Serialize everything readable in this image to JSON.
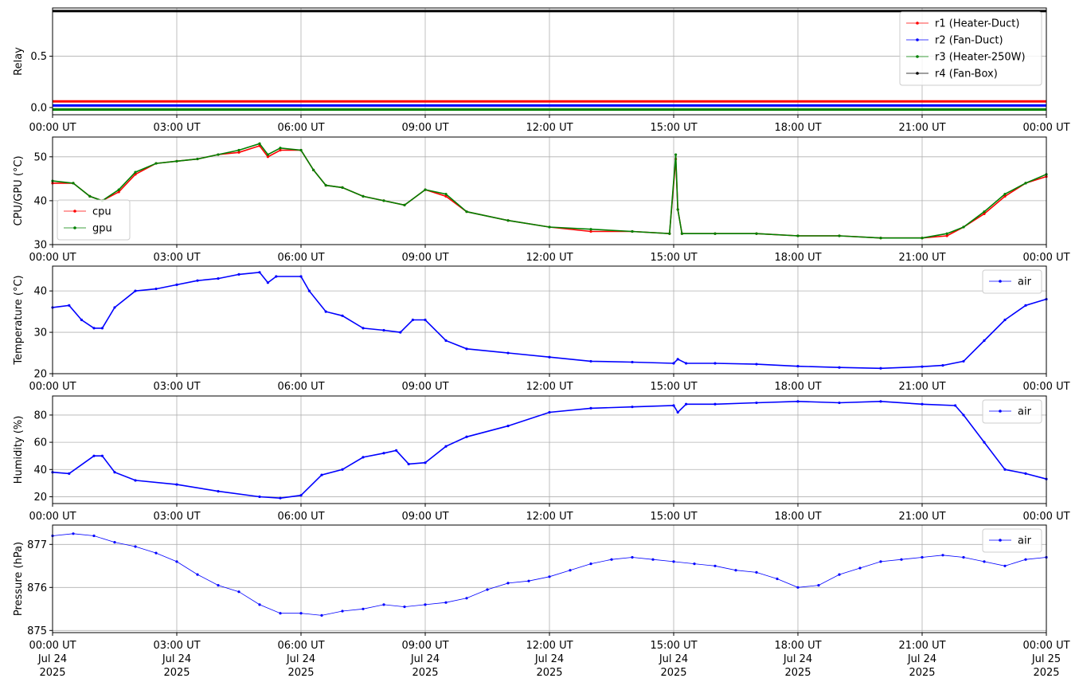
{
  "x_ticks": [
    "00:00 UT",
    "03:00 UT",
    "06:00 UT",
    "09:00 UT",
    "12:00 UT",
    "15:00 UT",
    "18:00 UT",
    "21:00 UT",
    "00:00 UT"
  ],
  "bottom_dates": [
    [
      "Jul 24",
      "2025"
    ],
    [
      "Jul 24",
      "2025"
    ],
    [
      "Jul 24",
      "2025"
    ],
    [
      "Jul 24",
      "2025"
    ],
    [
      "Jul 24",
      "2025"
    ],
    [
      "Jul 24",
      "2025"
    ],
    [
      "Jul 24",
      "2025"
    ],
    [
      "Jul 24",
      "2025"
    ],
    [
      "Jul 25",
      "2025"
    ]
  ],
  "chart_data": [
    {
      "type": "line",
      "ylabel": "Relay",
      "ylim": [
        -0.07,
        0.97
      ],
      "yticks": [
        0.0,
        0.5
      ],
      "ytick_labels": [
        "0.0",
        "0.5"
      ],
      "xlim_hours": [
        0,
        24
      ],
      "grid": true,
      "legend": "top-right",
      "series": [
        {
          "name": "r1 (Heater-Duct)",
          "color": "#ff0000",
          "x": [
            0,
            24
          ],
          "y": [
            0.06,
            0.06
          ]
        },
        {
          "name": "r2 (Fan-Duct)",
          "color": "#0000ff",
          "x": [
            0,
            24
          ],
          "y": [
            0.02,
            0.02
          ]
        },
        {
          "name": "r3 (Heater-250W)",
          "color": "#008000",
          "x": [
            0,
            24
          ],
          "y": [
            -0.02,
            -0.02
          ]
        },
        {
          "name": "r4 (Fan-Box)",
          "color": "#000000",
          "x": [
            0,
            24
          ],
          "y": [
            0.94,
            0.94
          ]
        }
      ]
    },
    {
      "type": "line",
      "ylabel": "CPU/GPU (°C)",
      "ylim": [
        30,
        54.5
      ],
      "yticks": [
        30,
        40,
        50
      ],
      "ytick_labels": [
        "30",
        "40",
        "50"
      ],
      "xlim_hours": [
        0,
        24
      ],
      "grid": true,
      "legend": "lower-left",
      "series": [
        {
          "name": "cpu",
          "color": "#ff0000",
          "x": [
            0,
            0.5,
            0.9,
            1.2,
            1.6,
            2.0,
            2.5,
            3.0,
            3.5,
            4.0,
            4.5,
            5.0,
            5.2,
            5.5,
            6.0,
            6.3,
            6.6,
            7.0,
            7.5,
            8.0,
            8.5,
            9.0,
            9.5,
            10.0,
            11.0,
            12.0,
            13.0,
            14.0,
            14.9,
            15.05,
            15.1,
            15.2,
            16.0,
            17.0,
            18.0,
            19.0,
            20.0,
            21.0,
            21.6,
            22.0,
            22.5,
            23.0,
            23.5,
            24.0
          ],
          "y": [
            44,
            44,
            41,
            40,
            42,
            46,
            48.5,
            49,
            49.5,
            50.5,
            51,
            52.5,
            50,
            51.5,
            51.5,
            47,
            43.5,
            43,
            41,
            40,
            39,
            42.5,
            41,
            37.5,
            35.5,
            34,
            33,
            33,
            32.5,
            49.5,
            38,
            32.5,
            32.5,
            32.5,
            32,
            32,
            31.5,
            31.5,
            32,
            34,
            37,
            41,
            44,
            45.5
          ]
        },
        {
          "name": "gpu",
          "color": "#008000",
          "x": [
            0,
            0.5,
            0.9,
            1.2,
            1.6,
            2.0,
            2.5,
            3.0,
            3.5,
            4.0,
            4.5,
            5.0,
            5.2,
            5.5,
            6.0,
            6.3,
            6.6,
            7.0,
            7.5,
            8.0,
            8.5,
            9.0,
            9.5,
            10.0,
            11.0,
            12.0,
            13.0,
            14.0,
            14.9,
            15.05,
            15.1,
            15.2,
            16.0,
            17.0,
            18.0,
            19.0,
            20.0,
            21.0,
            21.6,
            22.0,
            22.5,
            23.0,
            23.5,
            24.0
          ],
          "y": [
            44.5,
            44,
            41,
            40,
            42.5,
            46.5,
            48.5,
            49,
            49.5,
            50.5,
            51.5,
            53,
            50.5,
            52,
            51.5,
            47,
            43.5,
            43,
            41,
            40,
            39,
            42.5,
            41.5,
            37.5,
            35.5,
            34,
            33.5,
            33,
            32.5,
            50.5,
            38,
            32.5,
            32.5,
            32.5,
            32,
            32,
            31.5,
            31.5,
            32.5,
            34,
            37.5,
            41.5,
            44,
            46
          ]
        }
      ]
    },
    {
      "type": "line",
      "ylabel": "Temperature (°C)",
      "ylim": [
        20,
        46
      ],
      "yticks": [
        20,
        30,
        40
      ],
      "ytick_labels": [
        "20",
        "30",
        "40"
      ],
      "xlim_hours": [
        0,
        24
      ],
      "grid": true,
      "legend": "top-right",
      "series": [
        {
          "name": "air",
          "color": "#0000ff",
          "x": [
            0,
            0.4,
            0.7,
            1.0,
            1.2,
            1.5,
            2.0,
            2.5,
            3.0,
            3.5,
            4.0,
            4.5,
            5.0,
            5.2,
            5.4,
            6.0,
            6.2,
            6.6,
            7.0,
            7.5,
            8.0,
            8.4,
            8.7,
            9.0,
            9.5,
            10.0,
            11.0,
            12.0,
            13.0,
            14.0,
            15.0,
            15.1,
            15.3,
            16.0,
            17.0,
            18.0,
            19.0,
            20.0,
            21.0,
            21.5,
            22.0,
            22.5,
            23.0,
            23.5,
            24.0
          ],
          "y": [
            36,
            36.5,
            33,
            31,
            31,
            36,
            40,
            40.5,
            41.5,
            42.5,
            43,
            44,
            44.5,
            42,
            43.5,
            43.5,
            40,
            35,
            34,
            31,
            30.5,
            30,
            33,
            33,
            28,
            26,
            25,
            24,
            23,
            22.8,
            22.5,
            23.5,
            22.5,
            22.5,
            22.3,
            21.8,
            21.5,
            21.3,
            21.7,
            22,
            23,
            28,
            33,
            36.5,
            38
          ]
        }
      ]
    },
    {
      "type": "line",
      "ylabel": "Humidity (%)",
      "ylim": [
        15,
        94
      ],
      "yticks": [
        20,
        40,
        60,
        80
      ],
      "ytick_labels": [
        "20",
        "40",
        "60",
        "80"
      ],
      "xlim_hours": [
        0,
        24
      ],
      "grid": true,
      "legend": "top-right",
      "series": [
        {
          "name": "air",
          "color": "#0000ff",
          "x": [
            0,
            0.4,
            1.0,
            1.2,
            1.5,
            2.0,
            3.0,
            4.0,
            5.0,
            5.5,
            6.0,
            6.5,
            7.0,
            7.5,
            8.0,
            8.3,
            8.6,
            9.0,
            9.5,
            10.0,
            11.0,
            12.0,
            13.0,
            14.0,
            15.0,
            15.1,
            15.3,
            16.0,
            17.0,
            18.0,
            19.0,
            20.0,
            21.0,
            21.8,
            22.0,
            22.5,
            23.0,
            23.5,
            24.0
          ],
          "y": [
            38,
            37,
            50,
            50,
            38,
            32,
            29,
            24,
            20,
            19,
            21,
            36,
            40,
            49,
            52,
            54,
            44,
            45,
            57,
            64,
            72,
            82,
            85,
            86,
            87,
            82,
            88,
            88,
            89,
            90,
            89,
            90,
            88,
            87,
            80,
            60,
            40,
            37,
            33
          ]
        }
      ]
    },
    {
      "type": "scatter",
      "ylabel": "Pressure (hPa)",
      "ylim": [
        874.95,
        877.45
      ],
      "yticks": [
        875,
        876,
        877
      ],
      "ytick_labels": [
        "875",
        "876",
        "877"
      ],
      "xlim_hours": [
        0,
        24
      ],
      "grid": true,
      "legend": "top-right",
      "series": [
        {
          "name": "air",
          "color": "#0000ff",
          "x": [
            0,
            0.5,
            1.0,
            1.5,
            2.0,
            2.5,
            3.0,
            3.5,
            4.0,
            4.5,
            5.0,
            5.5,
            6.0,
            6.5,
            7.0,
            7.5,
            8.0,
            8.5,
            9.0,
            9.5,
            10.0,
            10.5,
            11.0,
            11.5,
            12.0,
            12.5,
            13.0,
            13.5,
            14.0,
            14.5,
            15.0,
            15.5,
            16.0,
            16.5,
            17.0,
            17.5,
            18.0,
            18.5,
            19.0,
            19.5,
            20.0,
            20.5,
            21.0,
            21.5,
            22.0,
            22.5,
            23.0,
            23.5,
            24.0
          ],
          "y": [
            877.2,
            877.25,
            877.2,
            877.05,
            876.95,
            876.8,
            876.6,
            876.3,
            876.05,
            875.9,
            875.6,
            875.4,
            875.4,
            875.35,
            875.45,
            875.5,
            875.6,
            875.55,
            875.6,
            875.65,
            875.75,
            875.95,
            876.1,
            876.15,
            876.25,
            876.4,
            876.55,
            876.65,
            876.7,
            876.65,
            876.6,
            876.55,
            876.5,
            876.4,
            876.35,
            876.2,
            876.0,
            876.05,
            876.3,
            876.45,
            876.6,
            876.65,
            876.7,
            876.75,
            876.7,
            876.6,
            876.5,
            876.65,
            876.7
          ]
        }
      ]
    }
  ]
}
